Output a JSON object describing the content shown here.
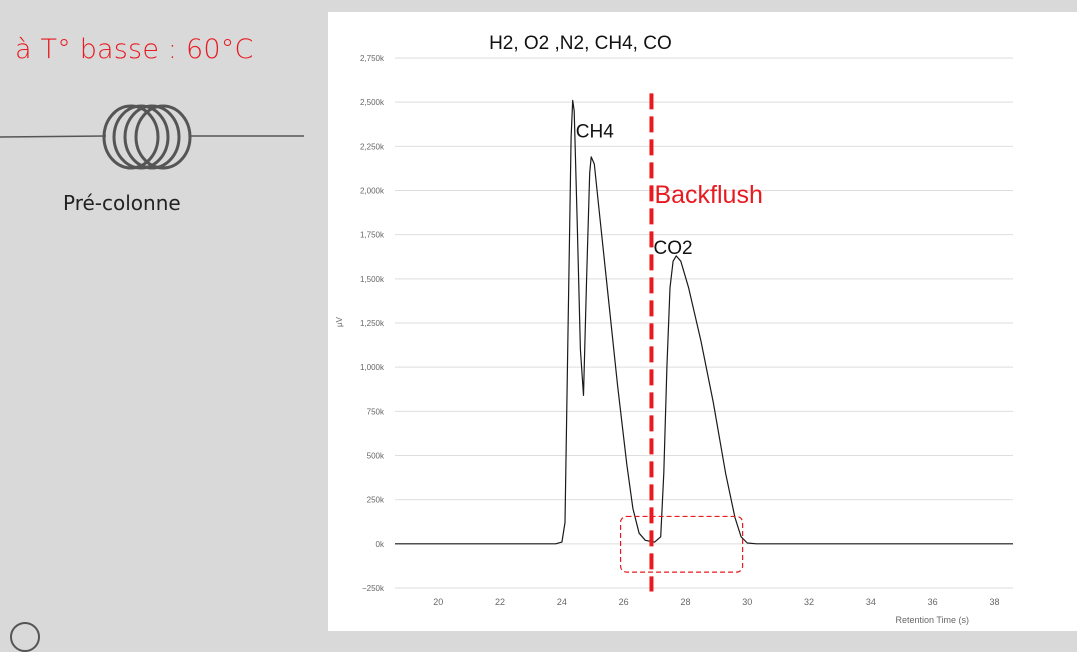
{
  "left_panel": {
    "title": "à T° basse : 60°C",
    "column_label": "Pré-colonne"
  },
  "chart_data": {
    "type": "line",
    "xlabel": "Retention Time (s)",
    "ylabel": "µV",
    "xlim": [
      18.6,
      38.6
    ],
    "ylim": [
      -250,
      2750
    ],
    "x_ticks": [
      20,
      22,
      24,
      26,
      28,
      30,
      32,
      34,
      36,
      38
    ],
    "x_tick_labels": [
      "20",
      "22",
      "24",
      "26",
      "28",
      "30",
      "32",
      "34",
      "36",
      "38"
    ],
    "y_ticks": [
      -250,
      0,
      250,
      500,
      750,
      1000,
      1250,
      1500,
      1750,
      2000,
      2250,
      2500,
      2750
    ],
    "y_tick_labels": [
      "−250k",
      "0k",
      "250k",
      "500k",
      "750k",
      "1,000k",
      "1,250k",
      "1,500k",
      "1,750k",
      "2,000k",
      "2,250k",
      "2,500k",
      "2,750k"
    ],
    "grid": true,
    "series": [
      {
        "color": "#1a1a1a",
        "points": [
          [
            18.6,
            0
          ],
          [
            23.8,
            0
          ],
          [
            24.0,
            10
          ],
          [
            24.1,
            120
          ],
          [
            24.2,
            1200
          ],
          [
            24.3,
            2300
          ],
          [
            24.35,
            2510
          ],
          [
            24.4,
            2450
          ],
          [
            24.5,
            1800
          ],
          [
            24.6,
            1100
          ],
          [
            24.7,
            840
          ],
          [
            24.8,
            1500
          ],
          [
            24.9,
            2100
          ],
          [
            24.95,
            2190
          ],
          [
            25.05,
            2150
          ],
          [
            25.2,
            1900
          ],
          [
            25.5,
            1400
          ],
          [
            25.8,
            900
          ],
          [
            26.1,
            450
          ],
          [
            26.3,
            200
          ],
          [
            26.5,
            60
          ],
          [
            26.7,
            20
          ],
          [
            27.0,
            10
          ],
          [
            27.2,
            40
          ],
          [
            27.3,
            400
          ],
          [
            27.4,
            1000
          ],
          [
            27.5,
            1450
          ],
          [
            27.6,
            1600
          ],
          [
            27.7,
            1630
          ],
          [
            27.85,
            1600
          ],
          [
            28.1,
            1450
          ],
          [
            28.5,
            1150
          ],
          [
            28.9,
            800
          ],
          [
            29.3,
            400
          ],
          [
            29.6,
            150
          ],
          [
            29.8,
            40
          ],
          [
            30.0,
            5
          ],
          [
            30.3,
            0
          ],
          [
            38.6,
            0
          ]
        ]
      }
    ],
    "annotations": {
      "peak_group_label": "H2, O2 ,N2, CH4, CO",
      "ch4_label": "CH4",
      "co2_label": "CO2",
      "backflush_label": "Backflush",
      "backflush_x": 26.9,
      "backflush_color": "#e8191f"
    }
  }
}
